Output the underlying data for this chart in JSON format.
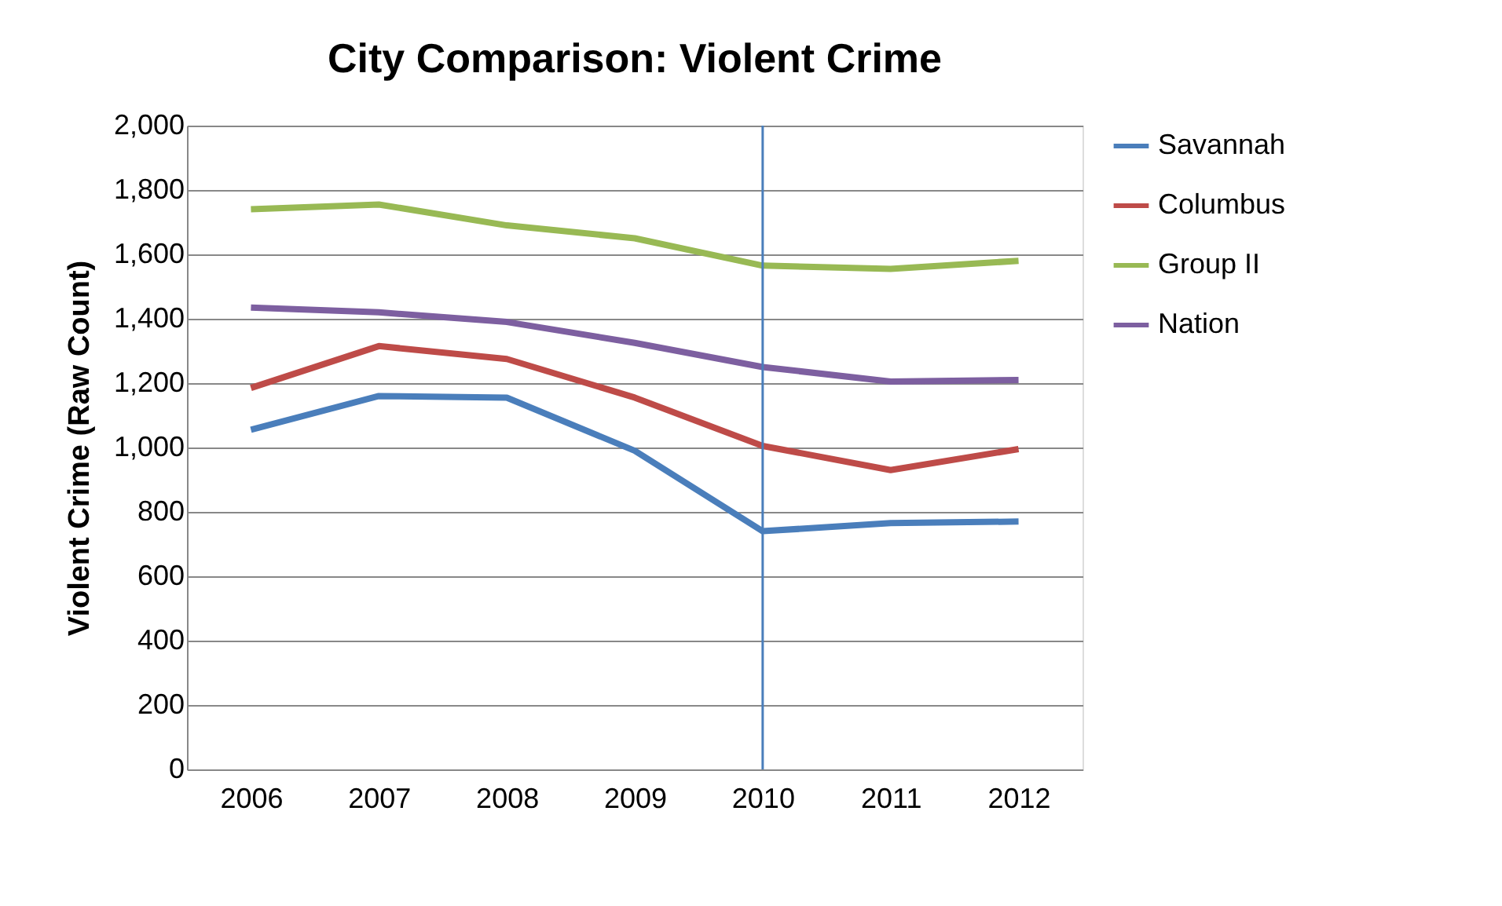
{
  "chart_data": {
    "type": "line",
    "title": "City Comparison: Violent Crime",
    "ylabel": "Violent Crime (Raw Count)",
    "categories": [
      "2006",
      "2007",
      "2008",
      "2009",
      "2010",
      "2011",
      "2012"
    ],
    "series": [
      {
        "name": "Savannah",
        "color": "#4a7ebb",
        "values": [
          1055,
          1160,
          1155,
          990,
          740,
          765,
          770
        ]
      },
      {
        "name": "Columbus",
        "color": "#be4b48",
        "values": [
          1185,
          1315,
          1275,
          1155,
          1005,
          930,
          995
        ]
      },
      {
        "name": "Group II",
        "color": "#98b954",
        "values": [
          1740,
          1755,
          1690,
          1650,
          1565,
          1555,
          1580
        ]
      },
      {
        "name": "Nation",
        "color": "#7d5fa0",
        "values": [
          1435,
          1420,
          1390,
          1325,
          1250,
          1205,
          1210
        ]
      }
    ],
    "ylim": [
      0,
      2000
    ],
    "yticks": [
      0,
      200,
      400,
      600,
      800,
      {
        "value": 1000,
        "label": "1,000"
      },
      {
        "value": 1200,
        "label": "1,200"
      },
      {
        "value": 1400,
        "label": "1,400"
      },
      {
        "value": 1600,
        "label": "1,600"
      },
      {
        "value": 1800,
        "label": "1,800"
      },
      {
        "value": 2000,
        "label": "2,000"
      }
    ],
    "ref_lines": [
      {
        "axis": "x",
        "value": "2010",
        "color": "#4a7ebb"
      }
    ],
    "grid": "y",
    "legend": "right",
    "marker": "none",
    "line_style": "solid"
  }
}
